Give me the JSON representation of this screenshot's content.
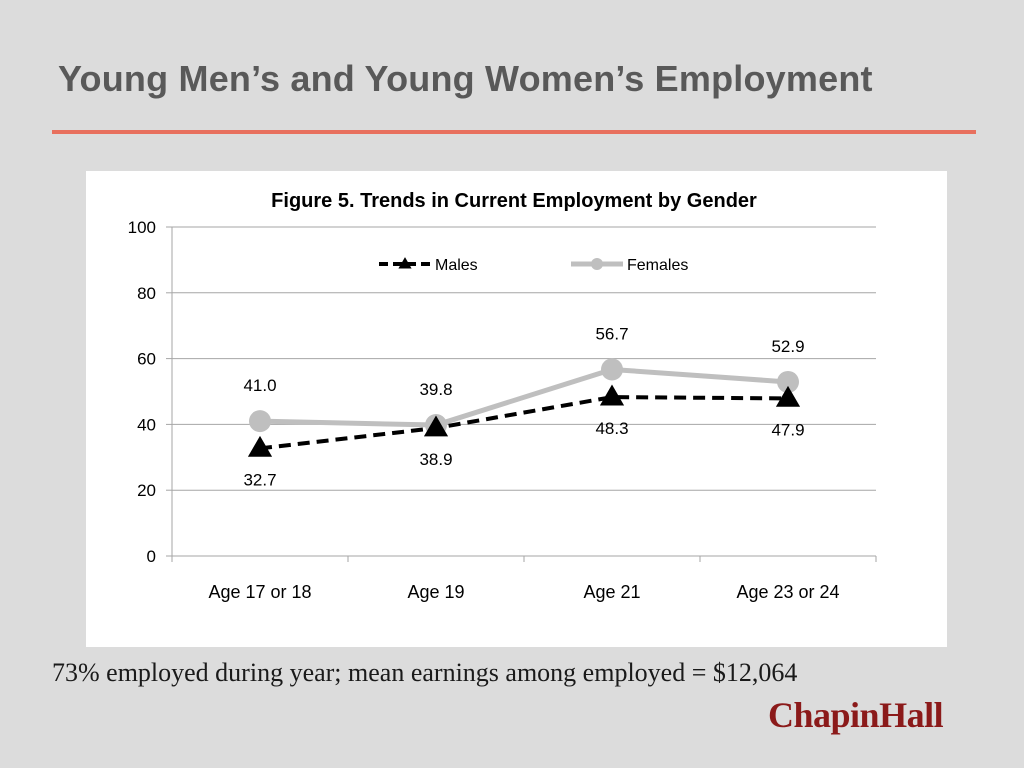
{
  "slide": {
    "title": "Young Men’s and Young Women’s Employment",
    "caption": "73% employed during year; mean earnings among employed = $12,064",
    "logo_text": "ChapinHall"
  },
  "colors": {
    "title_text": "#595959",
    "accent_rule": "#e8705e",
    "logo": "#8b1a1a",
    "males_series": "#000000",
    "females_series": "#bfbfbf",
    "gridline": "#a6a6a6"
  },
  "chart_data": {
    "type": "line",
    "title": "Figure 5. Trends in Current Employment by Gender",
    "xlabel": "",
    "ylabel": "",
    "categories": [
      "Age 17 or 18",
      "Age 19",
      "Age 21",
      "Age 23 or 24"
    ],
    "ylim": [
      0,
      100
    ],
    "yticks": [
      0,
      20,
      40,
      60,
      80,
      100
    ],
    "grid": true,
    "legend_position": "top",
    "series": [
      {
        "name": "Males",
        "values": [
          32.7,
          38.9,
          48.3,
          47.9
        ],
        "labels": [
          "32.7",
          "38.9",
          "48.3",
          "47.9"
        ],
        "label_position": "below",
        "marker": "triangle",
        "line_style": "dashed",
        "color": "#000000"
      },
      {
        "name": "Females",
        "values": [
          41.0,
          39.8,
          56.7,
          52.9
        ],
        "labels": [
          "41.0",
          "39.8",
          "56.7",
          "52.9"
        ],
        "label_position": "above",
        "marker": "circle",
        "line_style": "solid",
        "color": "#bfbfbf"
      }
    ]
  }
}
